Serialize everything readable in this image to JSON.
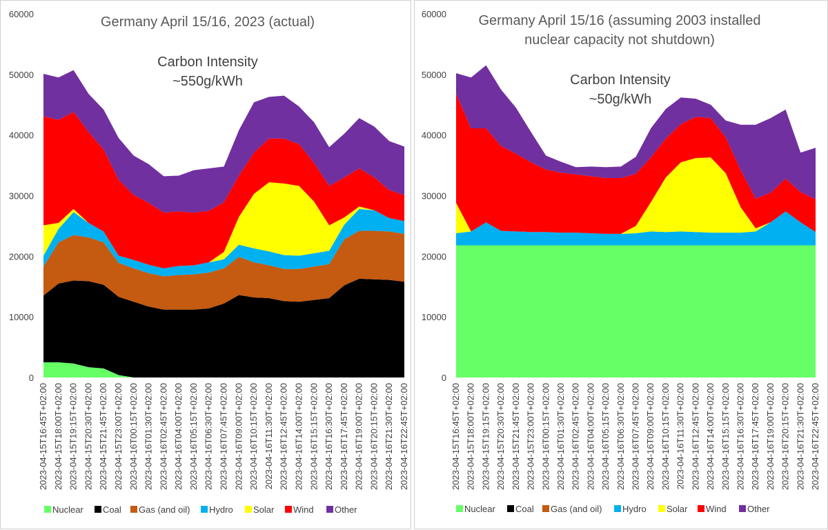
{
  "chart_data": [
    {
      "type": "area",
      "stacked": true,
      "title": "Germany April 15/16, 2023 (actual)",
      "annotation": [
        "Carbon Intensity",
        "~550g/kWh"
      ],
      "ylim": [
        0,
        60000
      ],
      "yticks": [
        "0",
        "10000",
        "20000",
        "30000",
        "40000",
        "50000",
        "60000"
      ],
      "xlabels": [
        "2023-04-15T16:45T+02:00",
        "2023-04-15T18:00T+02:00",
        "2023-04-15T19:15T+02:00",
        "2023-04-15T20:30T+02:00",
        "2023-04-15T21:45T+02:00",
        "2023-04-15T23:00T+02:00",
        "2023-04-16T00:15T+02:00",
        "2023-04-16T01:30T+02:00",
        "2023-04-16T02:45T+02:00",
        "2023-04-16T04:00T+02:00",
        "2023-04-16T05:15T+02:00",
        "2023-04-16T06:30T+02:00",
        "2023-04-16T07:45T+02:00",
        "2023-04-16T09:00T+02:00",
        "2023-04-16T10:15T+02:00",
        "2023-04-16T11:30T+02:00",
        "2023-04-16T12:45T+02:00",
        "2023-04-16T14:00T+02:00",
        "2023-04-16T15:15T+02:00",
        "2023-04-16T16:30T+02:00",
        "2023-04-16T17:45T+02:00",
        "2023-04-16T19:00T+02:00",
        "2023-04-16T20:15T+02:00",
        "2023-04-16T21:30T+02:00",
        "2023-04-16T22:45T+02:00"
      ],
      "legend_position": "bottom",
      "series": [
        {
          "name": "Nuclear",
          "color": "#66ff66",
          "values": [
            2500,
            2500,
            2300,
            1700,
            1500,
            400,
            0,
            0,
            0,
            0,
            0,
            0,
            0,
            0,
            0,
            0,
            0,
            0,
            0,
            0,
            0,
            0,
            0,
            0,
            0
          ]
        },
        {
          "name": "Coal",
          "color": "#000000",
          "values": [
            11000,
            13000,
            13700,
            14200,
            13800,
            12900,
            12500,
            11700,
            11200,
            11200,
            11200,
            11400,
            12200,
            13600,
            13200,
            13100,
            12600,
            12500,
            12800,
            13100,
            15200,
            16300,
            16200,
            16100,
            15800
          ]
        },
        {
          "name": "Gas (and oil)",
          "color": "#c55a11",
          "values": [
            4800,
            6800,
            7500,
            7200,
            7000,
            5600,
            5500,
            5500,
            5500,
            5700,
            5800,
            5900,
            5800,
            6300,
            5800,
            5400,
            5300,
            5400,
            5500,
            5600,
            7600,
            7900,
            8000,
            8000,
            7900
          ]
        },
        {
          "name": "Hydro",
          "color": "#00b0f0",
          "values": [
            1800,
            2200,
            3800,
            2400,
            1800,
            1200,
            1400,
            1400,
            1300,
            1500,
            1500,
            1700,
            1500,
            2000,
            2300,
            2300,
            2300,
            2200,
            2200,
            2200,
            2400,
            3600,
            3400,
            2200,
            2100
          ]
        },
        {
          "name": "Solar",
          "color": "#ffff00",
          "values": [
            5000,
            1000,
            500,
            0,
            0,
            0,
            0,
            0,
            0,
            0,
            0,
            0,
            1200,
            4600,
            9000,
            11400,
            11800,
            11500,
            8500,
            4200,
            1200,
            400,
            0,
            0,
            0
          ]
        },
        {
          "name": "Wind",
          "color": "#ff0000",
          "values": [
            18000,
            17000,
            16000,
            15000,
            13500,
            12500,
            10700,
            10200,
            9200,
            9000,
            8700,
            8500,
            8200,
            6800,
            6800,
            7200,
            7400,
            6900,
            6400,
            6500,
            6600,
            6300,
            5400,
            4600,
            4300
          ]
        },
        {
          "name": "Other",
          "color": "#7030a0",
          "values": [
            7000,
            7000,
            6900,
            6300,
            6600,
            6900,
            6500,
            6400,
            6000,
            5900,
            7000,
            7000,
            5900,
            7500,
            8300,
            6900,
            7100,
            6200,
            6700,
            6400,
            7200,
            8300,
            8400,
            8100,
            8000
          ]
        }
      ]
    },
    {
      "type": "area",
      "stacked": true,
      "title": "Germany April 15/16 (assuming 2003 installed nuclear capacity not shutdown)",
      "title_lines": [
        "Germany April 15/16 (assuming 2003 installed",
        "nuclear capacity not shutdown)"
      ],
      "annotation": [
        "Carbon Intensity",
        "~50g/kWh"
      ],
      "ylim": [
        0,
        60000
      ],
      "yticks": [
        "0",
        "10000",
        "20000",
        "30000",
        "40000",
        "50000",
        "60000"
      ],
      "xlabels": [
        "2023-04-15T16:45T+02:00",
        "2023-04-15T18:00T+02:00",
        "2023-04-15T19:15T+02:00",
        "2023-04-15T20:30T+02:00",
        "2023-04-15T21:45T+02:00",
        "2023-04-15T23:00T+02:00",
        "2023-04-16T00:15T+02:00",
        "2023-04-16T01:30T+02:00",
        "2023-04-16T02:45T+02:00",
        "2023-04-16T04:00T+02:00",
        "2023-04-16T05:15T+02:00",
        "2023-04-16T06:30T+02:00",
        "2023-04-16T07:45T+02:00",
        "2023-04-16T09:00T+02:00",
        "2023-04-16T10:15T+02:00",
        "2023-04-16T11:30T+02:00",
        "2023-04-16T12:45T+02:00",
        "2023-04-16T14:00T+02:00",
        "2023-04-16T15:15T+02:00",
        "2023-04-16T16:30T+02:00",
        "2023-04-16T17:45T+02:00",
        "2023-04-16T19:00T+02:00",
        "2023-04-16T20:15T+02:00",
        "2023-04-16T21:30T+02:00",
        "2023-04-16T22:45T+02:00"
      ],
      "legend_position": "bottom",
      "series": [
        {
          "name": "Nuclear",
          "color": "#66ff66",
          "values": [
            21800,
            21800,
            21800,
            21800,
            21800,
            21800,
            21800,
            21800,
            21800,
            21800,
            21800,
            21800,
            21800,
            21800,
            21800,
            21800,
            21800,
            21800,
            21800,
            21800,
            21800,
            21800,
            21800,
            21800,
            21800
          ]
        },
        {
          "name": "Coal",
          "color": "#000000",
          "values": [
            0,
            0,
            0,
            0,
            0,
            0,
            0,
            0,
            0,
            0,
            0,
            0,
            0,
            0,
            0,
            0,
            0,
            0,
            0,
            0,
            0,
            0,
            0,
            0,
            0
          ]
        },
        {
          "name": "Gas (and oil)",
          "color": "#c55a11",
          "values": [
            0,
            0,
            0,
            0,
            0,
            0,
            0,
            0,
            0,
            0,
            0,
            0,
            0,
            0,
            0,
            0,
            0,
            0,
            0,
            0,
            0,
            0,
            0,
            0,
            0
          ]
        },
        {
          "name": "Hydro",
          "color": "#00b0f0",
          "values": [
            2000,
            2300,
            3800,
            2400,
            2300,
            2200,
            2200,
            2100,
            2100,
            2000,
            1900,
            1900,
            2000,
            2300,
            2200,
            2300,
            2200,
            2100,
            2100,
            2100,
            2300,
            3800,
            5600,
            3800,
            2200
          ]
        },
        {
          "name": "Solar",
          "color": "#ffff00",
          "values": [
            5000,
            0,
            0,
            0,
            0,
            0,
            0,
            0,
            0,
            0,
            0,
            0,
            1200,
            4800,
            9000,
            11400,
            12200,
            12400,
            9800,
            4200,
            500,
            0,
            0,
            0,
            0
          ]
        },
        {
          "name": "Wind",
          "color": "#ff0000",
          "values": [
            18000,
            17000,
            15500,
            14000,
            12800,
            11500,
            10300,
            9900,
            9600,
            9400,
            9200,
            9200,
            8600,
            7400,
            6400,
            6300,
            6800,
            6500,
            5900,
            6100,
            4900,
            4900,
            5400,
            5000,
            5400
          ]
        },
        {
          "name": "Other",
          "color": "#7030a0",
          "values": [
            3400,
            8400,
            10400,
            9300,
            7600,
            5000,
            2300,
            1800,
            1200,
            1600,
            1800,
            1900,
            2800,
            4800,
            4900,
            4400,
            3000,
            2200,
            2800,
            7500,
            12200,
            12300,
            11400,
            6500,
            8500
          ]
        }
      ]
    }
  ]
}
